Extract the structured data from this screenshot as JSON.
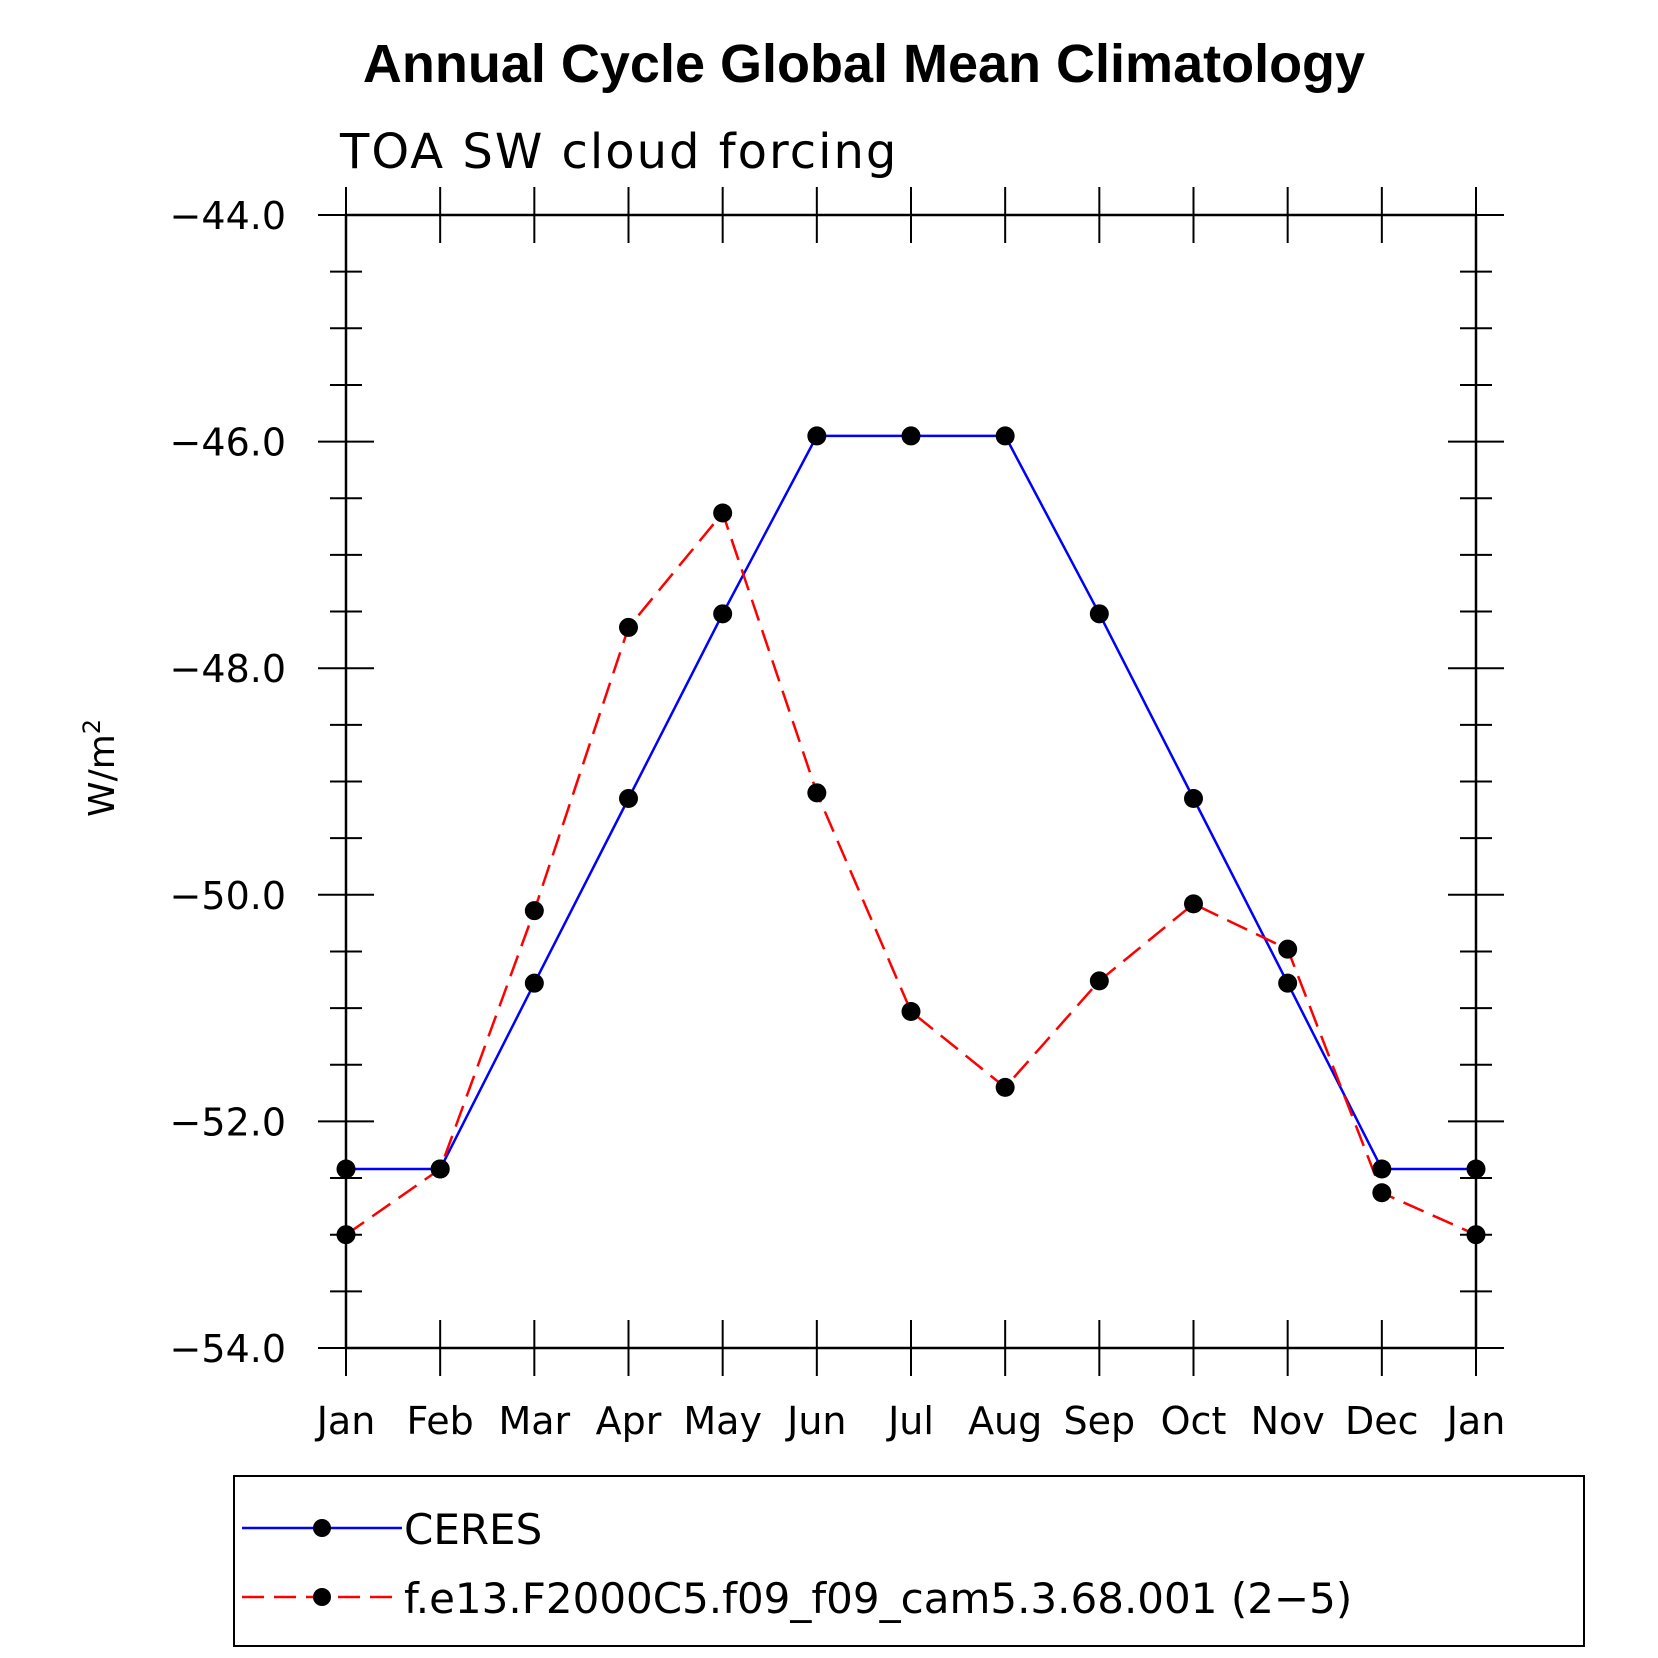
{
  "chart_data": {
    "type": "line",
    "title": "Annual Cycle Global Mean Climatology",
    "subtitle": "TOA SW cloud forcing",
    "ylabel": "W/m",
    "ylabel_sup": "2",
    "xlabel": "",
    "ylim": [
      -54.0,
      -44.0
    ],
    "yticks": [
      -54.0,
      -52.0,
      -50.0,
      -48.0,
      -46.0,
      -44.0
    ],
    "ytick_labels": [
      "−54.0",
      "−52.0",
      "−50.0",
      "−48.0",
      "−46.0",
      "−44.0"
    ],
    "categories": [
      "Jan",
      "Feb",
      "Mar",
      "Apr",
      "May",
      "Jun",
      "Jul",
      "Aug",
      "Sep",
      "Oct",
      "Nov",
      "Dec",
      "Jan"
    ],
    "series": [
      {
        "name": "CERES",
        "color": "#0000ff",
        "dash": "solid",
        "marker": "circle",
        "values": [
          -52.42,
          -52.42,
          -50.78,
          -49.15,
          -47.52,
          -45.95,
          -45.95,
          -45.95,
          -47.52,
          -49.15,
          -50.78,
          -52.42,
          -52.42
        ]
      },
      {
        "name": "f.e13.F2000C5.f09_f09_cam5.3.68.001 (2−5)",
        "color": "#ff0000",
        "dash": "dashed",
        "marker": "circle",
        "values": [
          -53.0,
          -52.42,
          -50.14,
          -47.64,
          -46.63,
          -49.1,
          -51.03,
          -51.7,
          -50.76,
          -50.08,
          -50.48,
          -52.63,
          -53.0
        ]
      }
    ],
    "legend_position": "bottom"
  }
}
